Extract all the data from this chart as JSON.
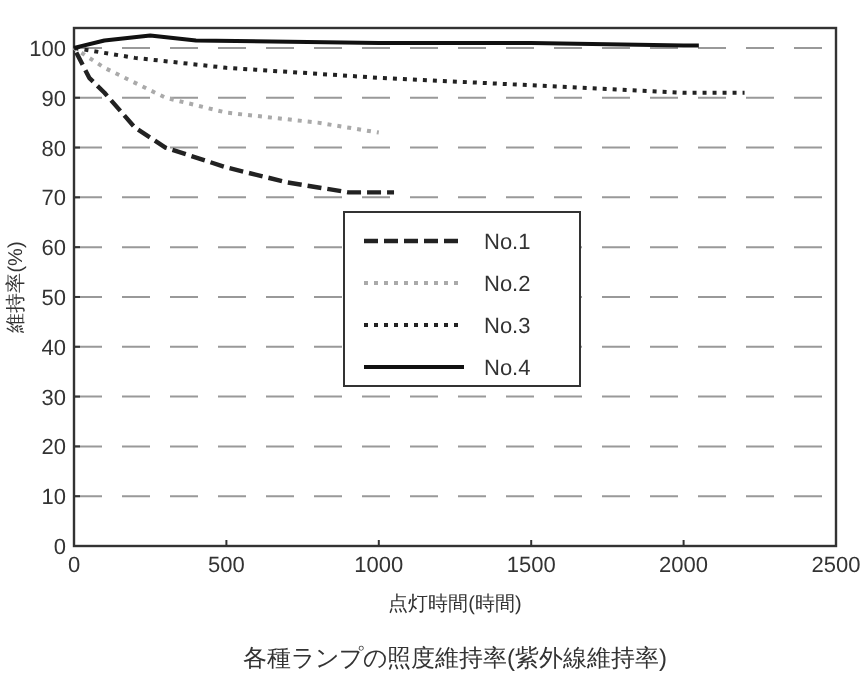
{
  "chart_data": {
    "type": "line",
    "title": "各種ランプの照度維持率(紫外線維持率)",
    "xlabel": "点灯時間(時間)",
    "ylabel": "維持率(%)",
    "xlim": [
      0,
      2500
    ],
    "xticks": [
      0,
      500,
      1000,
      1500,
      2000,
      2500
    ],
    "ylim": [
      0,
      104
    ],
    "yticks": [
      0,
      10,
      20,
      30,
      40,
      50,
      60,
      70,
      80,
      90,
      100
    ],
    "grid": "y",
    "legend": "center right",
    "marker": "none",
    "series": [
      {
        "name": "No.1",
        "color": "#222222",
        "line_style": "dashed",
        "x": [
          0,
          50,
          100,
          200,
          300,
          500,
          700,
          900,
          1050
        ],
        "values": [
          100,
          94,
          91,
          84,
          80,
          76,
          73,
          71,
          71
        ]
      },
      {
        "name": "No.2",
        "color": "#aaaaaa",
        "line_style": "dotted",
        "x": [
          0,
          100,
          300,
          500,
          800,
          1000
        ],
        "values": [
          100,
          96,
          90,
          87,
          85,
          83
        ]
      },
      {
        "name": "No.3",
        "color": "#222222",
        "line_style": "dotted",
        "x": [
          0,
          200,
          500,
          1000,
          1500,
          2000,
          2200
        ],
        "values": [
          100,
          98,
          96,
          94,
          92.5,
          91,
          91
        ]
      },
      {
        "name": "No.4",
        "color": "#111111",
        "line_style": "solid",
        "x": [
          0,
          100,
          250,
          400,
          1000,
          1500,
          2000,
          2050
        ],
        "values": [
          100,
          101.5,
          102.5,
          101.5,
          101,
          101,
          100.5,
          100.5
        ]
      }
    ]
  }
}
